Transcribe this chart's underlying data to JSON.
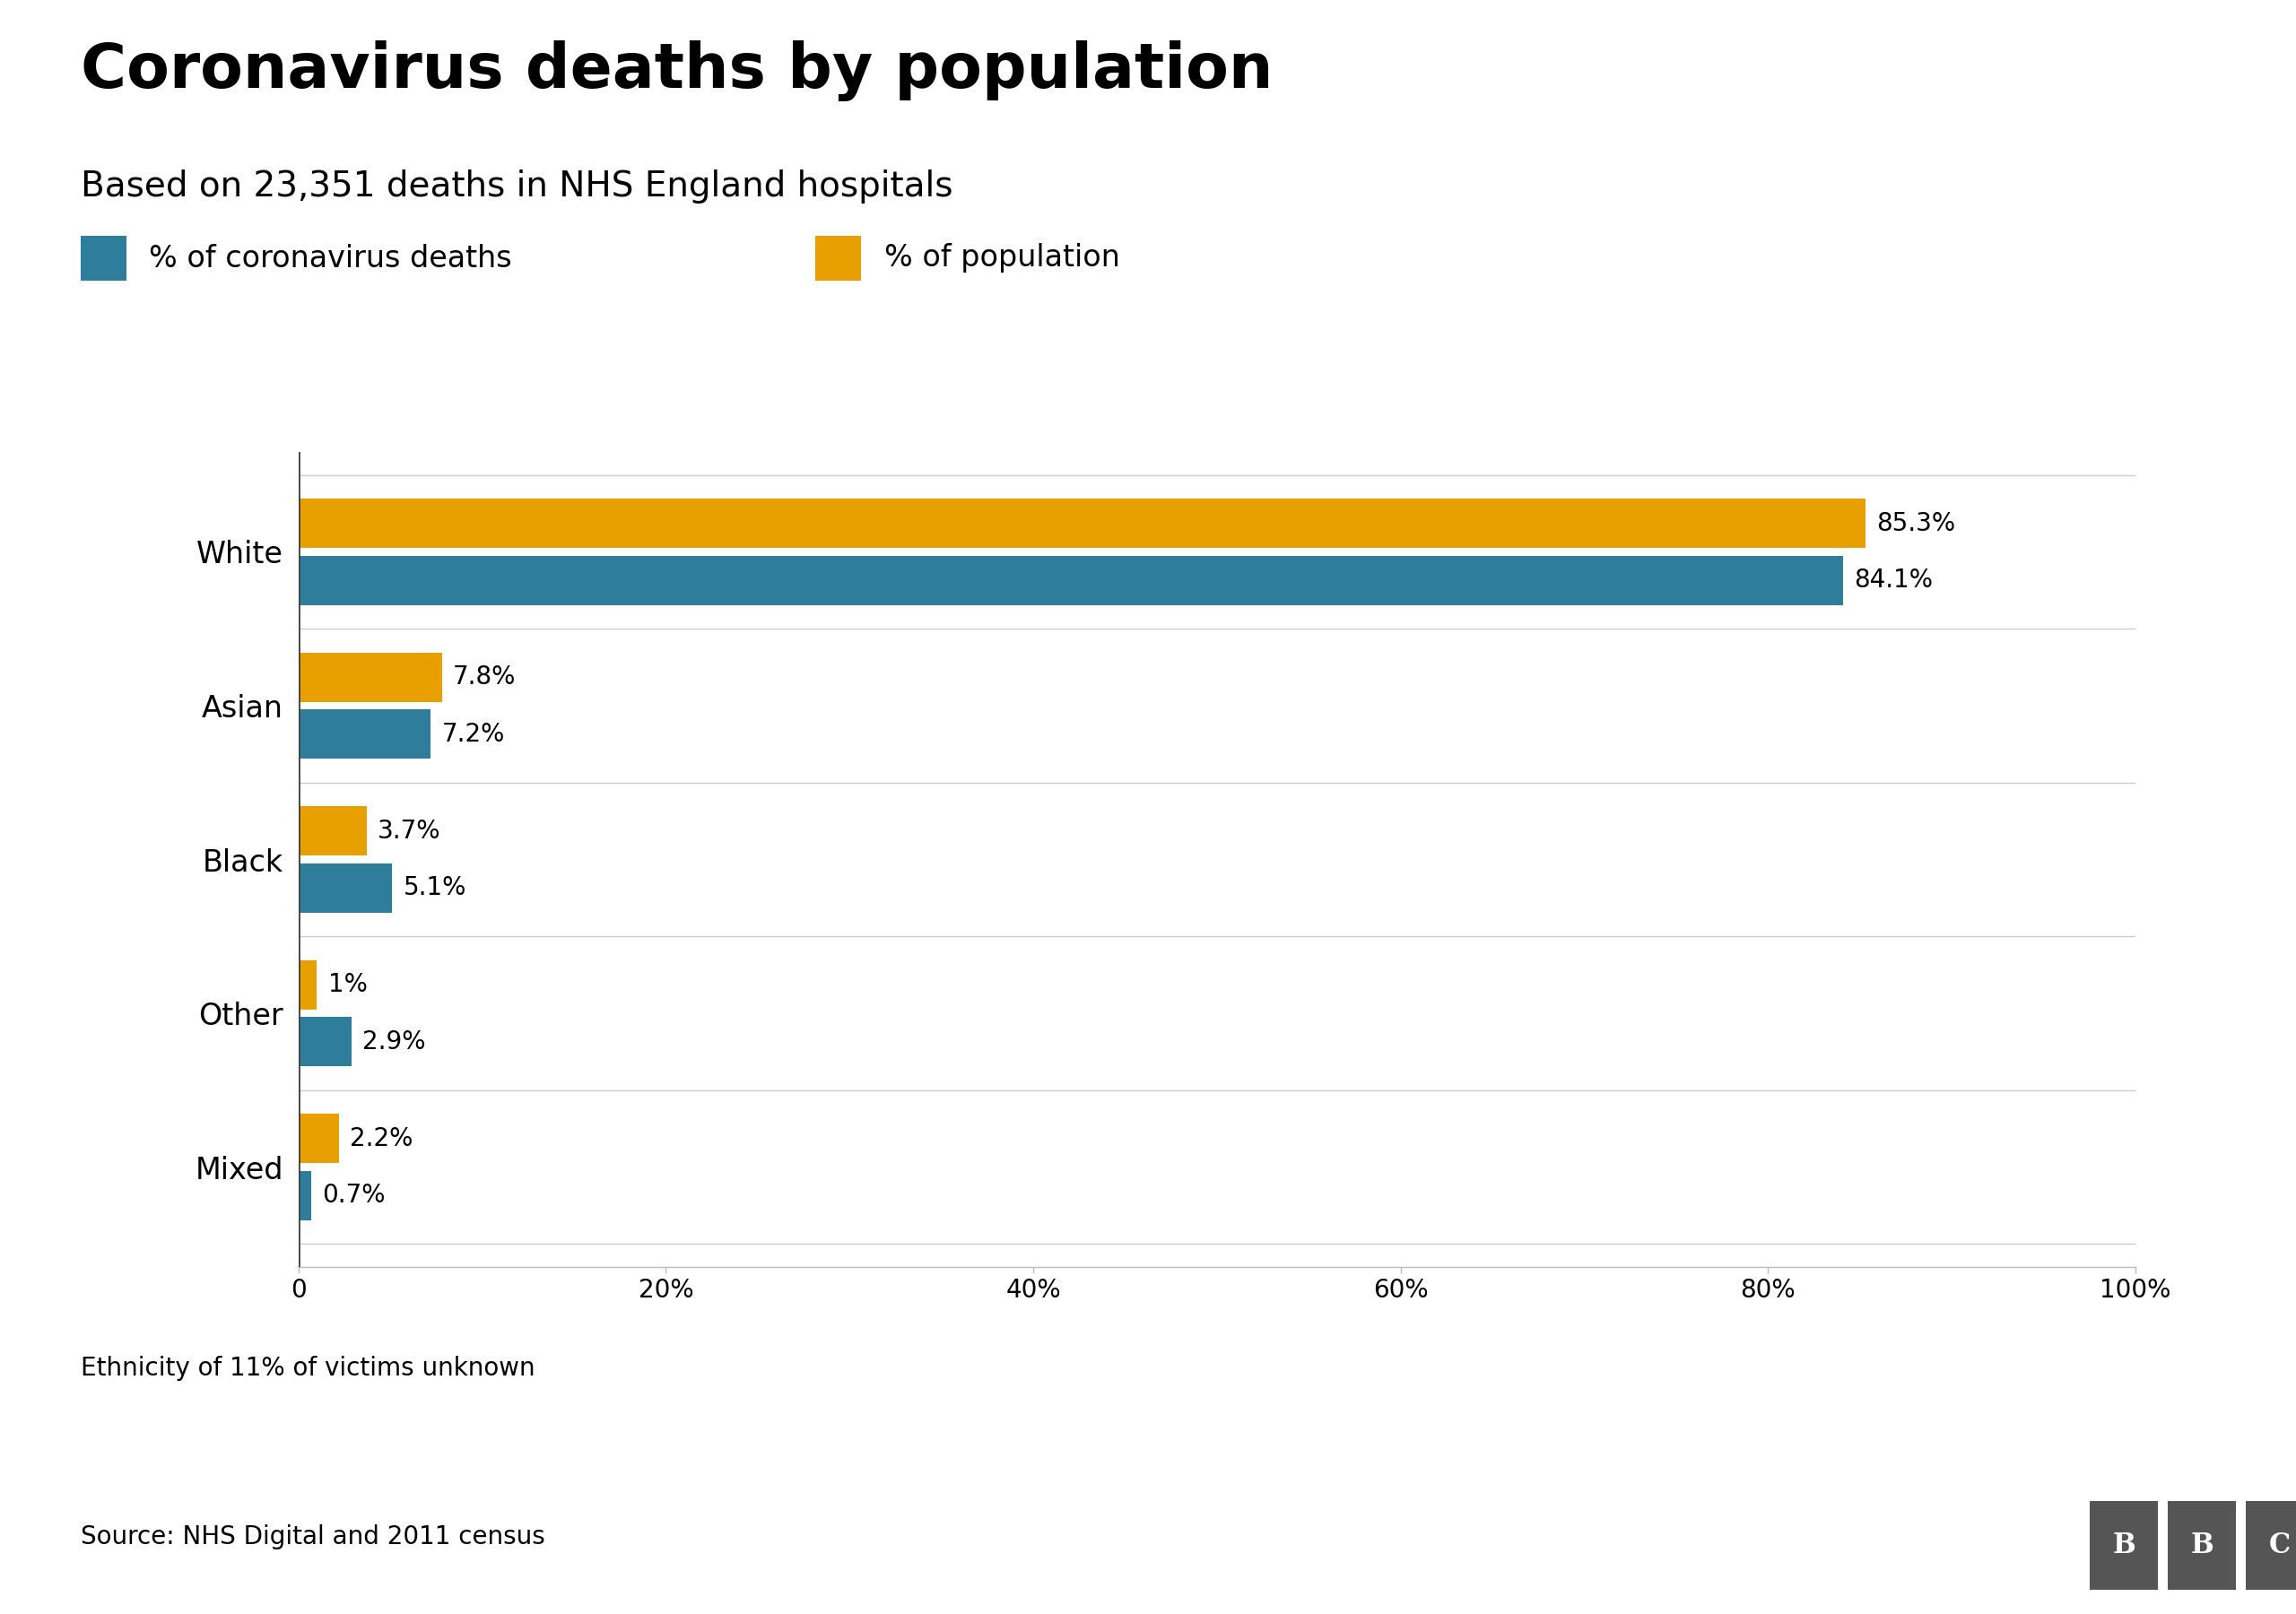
{
  "title": "Coronavirus deaths by population",
  "subtitle": "Based on 23,351 deaths in NHS England hospitals",
  "categories": [
    "White",
    "Asian",
    "Black",
    "Other",
    "Mixed"
  ],
  "pct_deaths": [
    84.1,
    7.2,
    5.1,
    2.9,
    0.7
  ],
  "pct_population": [
    85.3,
    7.8,
    3.7,
    1.0,
    2.2
  ],
  "deaths_labels": [
    "84.1%",
    "7.2%",
    "5.1%",
    "2.9%",
    "0.7%"
  ],
  "population_labels": [
    "85.3%",
    "7.8%",
    "3.7%",
    "1%",
    "2.2%"
  ],
  "color_deaths": "#2e7d9c",
  "color_population": "#e8a000",
  "background_color": "#ffffff",
  "footnote": "Ethnicity of 11% of victims unknown",
  "source": "Source: NHS Digital and 2011 census",
  "legend_deaths": "% of coronavirus deaths",
  "legend_population": "% of population",
  "xlim": [
    0,
    100
  ],
  "xtick_labels": [
    "0",
    "20%",
    "40%",
    "60%",
    "80%",
    "100%"
  ],
  "xtick_values": [
    0,
    20,
    40,
    60,
    80,
    100
  ],
  "bar_height": 0.32,
  "bar_gap": 0.05,
  "bbc_color": "#555555"
}
